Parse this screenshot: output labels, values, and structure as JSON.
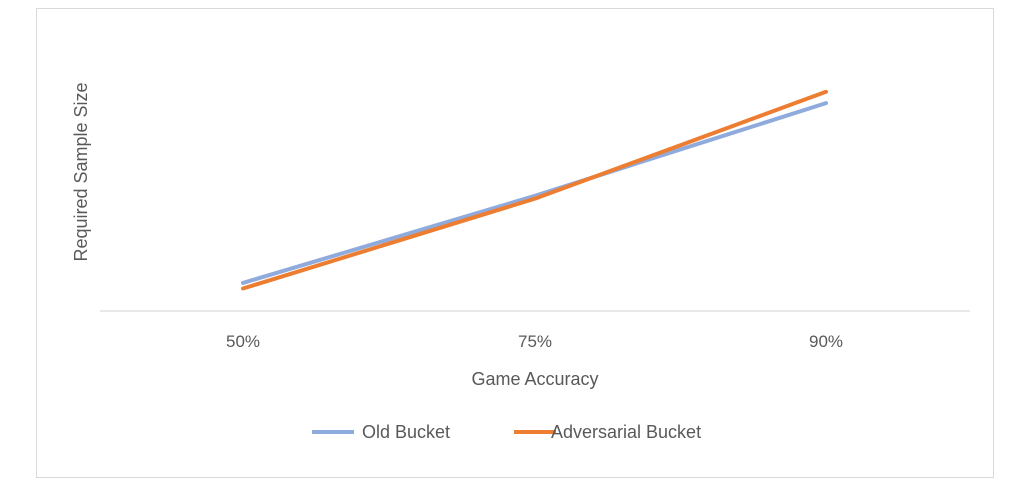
{
  "chart_data": {
    "type": "line",
    "categories": [
      "50%",
      "75%",
      "90%"
    ],
    "xlabel": "Game Accuracy",
    "ylabel": "Required Sample Size",
    "y_tick_labels_shown": false,
    "grid": false,
    "legend_position": "bottom",
    "ylim": [
      0,
      100
    ],
    "series": [
      {
        "name": "Old Bucket",
        "color": "#8FAADC",
        "values": [
          10,
          41,
          74
        ]
      },
      {
        "name": "Adversarial Bucket",
        "color": "#ED7D31",
        "values": [
          8,
          40,
          78
        ]
      }
    ]
  }
}
